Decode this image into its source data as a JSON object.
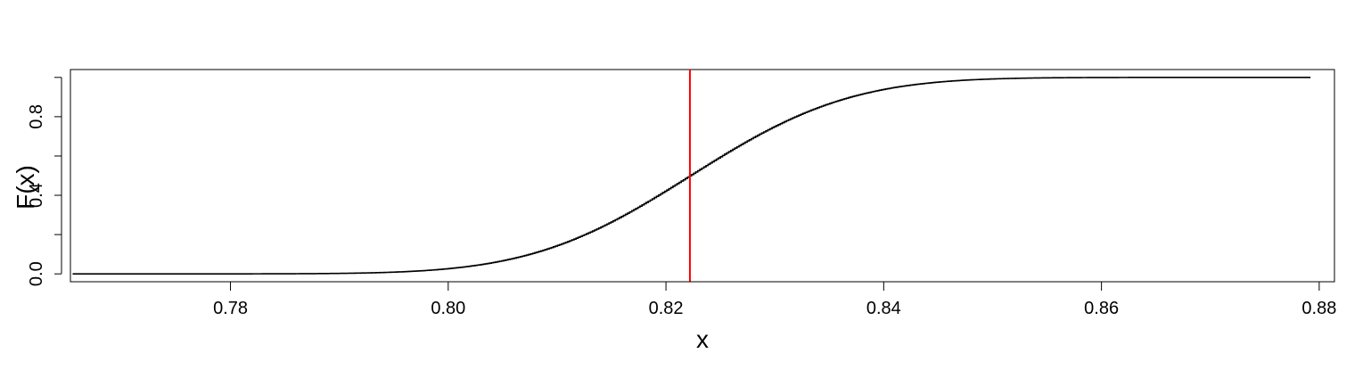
{
  "chart_data": {
    "type": "line",
    "title": "",
    "xlabel": "x",
    "ylabel": "F(x)",
    "xlim": [
      0.7653,
      0.8814
    ],
    "ylim": [
      -0.04,
      1.04
    ],
    "x_ticks": [
      0.78,
      0.8,
      0.82,
      0.84,
      0.86,
      0.88
    ],
    "x_tick_labels": [
      "0.78",
      "0.80",
      "0.82",
      "0.84",
      "0.86",
      "0.88"
    ],
    "y_ticks": [
      0.0,
      0.2,
      0.4,
      0.6,
      0.8,
      1.0
    ],
    "y_tick_labels": [
      "0.0",
      "",
      "0.4",
      "",
      "0.8",
      ""
    ],
    "grid": false,
    "series": [
      {
        "color": "#000000",
        "style": "step",
        "x_range": [
          0.7655,
          0.8792
        ],
        "mean": 0.8222,
        "sd": 0.0115,
        "steps": 600
      }
    ],
    "vline": {
      "x": 0.8222,
      "color": "#ff0000"
    }
  }
}
